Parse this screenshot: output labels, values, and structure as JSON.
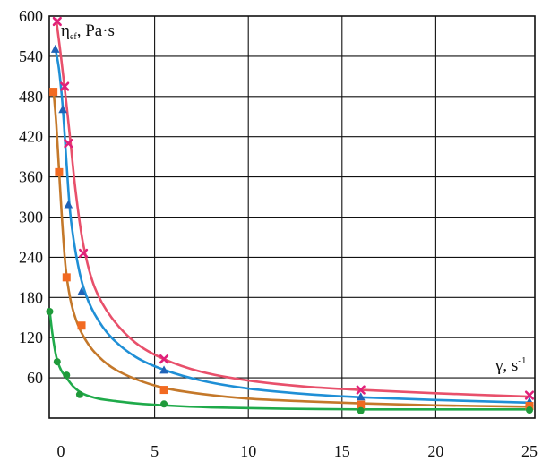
{
  "chart_data": {
    "type": "scatter",
    "title": "",
    "ylabel": {
      "symbol": "η",
      "subscript": "ef",
      "unit": ", Pa·s"
    },
    "xlabel": {
      "symbol": "γ, s",
      "superscript": "-1"
    },
    "xlim": [
      0,
      25
    ],
    "ylim": [
      0,
      600
    ],
    "x_ticks": [
      0,
      5,
      10,
      15,
      20,
      25
    ],
    "x_tick_labels": [
      "0",
      "5",
      "10",
      "15",
      "20",
      "25"
    ],
    "y_ticks": [
      60,
      120,
      180,
      240,
      300,
      360,
      420,
      480,
      540,
      600
    ],
    "y_tick_labels": [
      "60",
      "120",
      "180",
      "240",
      "300",
      "360",
      "420",
      "480",
      "540",
      "600"
    ],
    "grid": true,
    "series": [
      {
        "marker": "x",
        "color": "#e0207a",
        "line_color": "#e8506b",
        "points": [
          {
            "x": -0.2,
            "y": 592
          },
          {
            "x": 0.2,
            "y": 495
          },
          {
            "x": 0.4,
            "y": 410
          },
          {
            "x": 1.2,
            "y": 246
          },
          {
            "x": 5.5,
            "y": 88
          },
          {
            "x": 16.0,
            "y": 42
          },
          {
            "x": 25.0,
            "y": 34
          }
        ],
        "curve": [
          {
            "x": -0.25,
            "y": 595
          },
          {
            "x": 0.0,
            "y": 540
          },
          {
            "x": 0.25,
            "y": 480
          },
          {
            "x": 0.5,
            "y": 415
          },
          {
            "x": 0.8,
            "y": 335
          },
          {
            "x": 1.2,
            "y": 258
          },
          {
            "x": 1.8,
            "y": 195
          },
          {
            "x": 2.7,
            "y": 150
          },
          {
            "x": 4.0,
            "y": 112
          },
          {
            "x": 5.5,
            "y": 88
          },
          {
            "x": 7.5,
            "y": 69
          },
          {
            "x": 10.0,
            "y": 56
          },
          {
            "x": 13.0,
            "y": 47
          },
          {
            "x": 16.0,
            "y": 42
          },
          {
            "x": 20.0,
            "y": 37
          },
          {
            "x": 25.0,
            "y": 32
          }
        ]
      },
      {
        "marker": "triangle",
        "color": "#1f63b8",
        "line_color": "#1f8fd6",
        "points": [
          {
            "x": -0.3,
            "y": 550
          },
          {
            "x": 0.1,
            "y": 460
          },
          {
            "x": 0.4,
            "y": 318
          },
          {
            "x": 1.1,
            "y": 188
          },
          {
            "x": 5.5,
            "y": 71
          },
          {
            "x": 16.0,
            "y": 31
          },
          {
            "x": 25.0,
            "y": 24
          }
        ],
        "curve": [
          {
            "x": -0.3,
            "y": 552
          },
          {
            "x": -0.1,
            "y": 520
          },
          {
            "x": 0.1,
            "y": 463
          },
          {
            "x": 0.3,
            "y": 380
          },
          {
            "x": 0.5,
            "y": 305
          },
          {
            "x": 0.8,
            "y": 245
          },
          {
            "x": 1.2,
            "y": 195
          },
          {
            "x": 1.8,
            "y": 155
          },
          {
            "x": 2.7,
            "y": 120
          },
          {
            "x": 4.0,
            "y": 91
          },
          {
            "x": 5.5,
            "y": 72
          },
          {
            "x": 7.5,
            "y": 56
          },
          {
            "x": 10.0,
            "y": 44
          },
          {
            "x": 13.0,
            "y": 36
          },
          {
            "x": 16.0,
            "y": 31
          },
          {
            "x": 20.0,
            "y": 27
          },
          {
            "x": 25.0,
            "y": 23
          }
        ]
      },
      {
        "marker": "square",
        "color": "#f26a21",
        "line_color": "#c4782a",
        "points": [
          {
            "x": -0.4,
            "y": 487
          },
          {
            "x": -0.1,
            "y": 367
          },
          {
            "x": 0.3,
            "y": 210
          },
          {
            "x": 1.1,
            "y": 138
          },
          {
            "x": 5.5,
            "y": 42
          },
          {
            "x": 16.0,
            "y": 20
          },
          {
            "x": 25.0,
            "y": 18
          }
        ],
        "curve": [
          {
            "x": -0.4,
            "y": 489
          },
          {
            "x": -0.25,
            "y": 440
          },
          {
            "x": -0.1,
            "y": 370
          },
          {
            "x": 0.05,
            "y": 300
          },
          {
            "x": 0.25,
            "y": 225
          },
          {
            "x": 0.5,
            "y": 178
          },
          {
            "x": 0.8,
            "y": 147
          },
          {
            "x": 1.2,
            "y": 122
          },
          {
            "x": 1.8,
            "y": 98
          },
          {
            "x": 2.7,
            "y": 76
          },
          {
            "x": 4.0,
            "y": 58
          },
          {
            "x": 5.5,
            "y": 45
          },
          {
            "x": 7.5,
            "y": 36
          },
          {
            "x": 10.0,
            "y": 29
          },
          {
            "x": 13.0,
            "y": 25
          },
          {
            "x": 16.0,
            "y": 22
          },
          {
            "x": 20.0,
            "y": 19
          },
          {
            "x": 25.0,
            "y": 17
          }
        ]
      },
      {
        "marker": "circle",
        "color": "#1f9a3a",
        "line_color": "#1faa4a",
        "points": [
          {
            "x": -0.6,
            "y": 159
          },
          {
            "x": -0.2,
            "y": 84
          },
          {
            "x": 0.3,
            "y": 64
          },
          {
            "x": 1.0,
            "y": 35
          },
          {
            "x": 5.5,
            "y": 21
          },
          {
            "x": 16.0,
            "y": 11
          },
          {
            "x": 25.0,
            "y": 12
          }
        ],
        "curve": [
          {
            "x": -0.6,
            "y": 160
          },
          {
            "x": -0.45,
            "y": 125
          },
          {
            "x": -0.25,
            "y": 92
          },
          {
            "x": 0.0,
            "y": 72
          },
          {
            "x": 0.3,
            "y": 60
          },
          {
            "x": 0.7,
            "y": 46
          },
          {
            "x": 1.2,
            "y": 36
          },
          {
            "x": 2.0,
            "y": 29
          },
          {
            "x": 3.0,
            "y": 25
          },
          {
            "x": 4.0,
            "y": 22
          },
          {
            "x": 5.5,
            "y": 19
          },
          {
            "x": 8.0,
            "y": 16
          },
          {
            "x": 12.0,
            "y": 14
          },
          {
            "x": 16.0,
            "y": 13
          },
          {
            "x": 20.0,
            "y": 13
          },
          {
            "x": 25.0,
            "y": 13
          }
        ]
      }
    ]
  }
}
